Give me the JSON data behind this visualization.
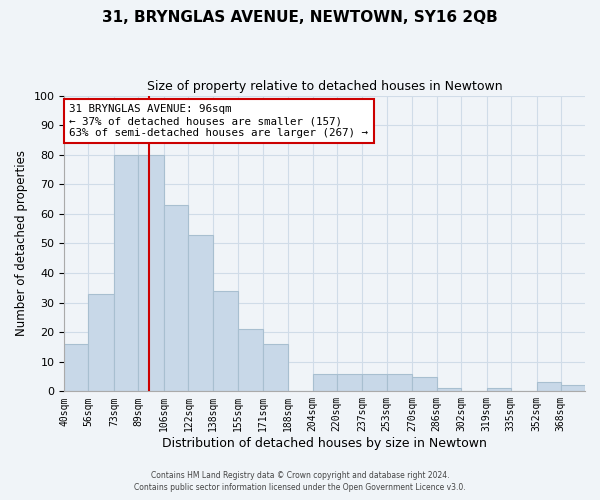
{
  "title": "31, BRYNGLAS AVENUE, NEWTOWN, SY16 2QB",
  "subtitle": "Size of property relative to detached houses in Newtown",
  "xlabel": "Distribution of detached houses by size in Newtown",
  "ylabel": "Number of detached properties",
  "bin_labels": [
    "40sqm",
    "56sqm",
    "73sqm",
    "89sqm",
    "106sqm",
    "122sqm",
    "138sqm",
    "155sqm",
    "171sqm",
    "188sqm",
    "204sqm",
    "220sqm",
    "237sqm",
    "253sqm",
    "270sqm",
    "286sqm",
    "302sqm",
    "319sqm",
    "335sqm",
    "352sqm",
    "368sqm"
  ],
  "bin_edges": [
    40,
    56,
    73,
    89,
    106,
    122,
    138,
    155,
    171,
    188,
    204,
    220,
    237,
    253,
    270,
    286,
    302,
    319,
    335,
    352,
    368,
    384
  ],
  "bar_heights": [
    16,
    33,
    80,
    80,
    63,
    53,
    34,
    21,
    16,
    0,
    6,
    6,
    6,
    6,
    5,
    1,
    0,
    1,
    0,
    3,
    2
  ],
  "bar_color": "#c8d8e8",
  "bar_edgecolor": "#a8bfd0",
  "ylim": [
    0,
    100
  ],
  "xlim": [
    40,
    384
  ],
  "property_size": 96,
  "vline_color": "#cc0000",
  "annotation_line1": "31 BRYNGLAS AVENUE: 96sqm",
  "annotation_line2": "← 37% of detached houses are smaller (157)",
  "annotation_line3": "63% of semi-detached houses are larger (267) →",
  "footer_line1": "Contains HM Land Registry data © Crown copyright and database right 2024.",
  "footer_line2": "Contains public sector information licensed under the Open Government Licence v3.0.",
  "background_color": "#f0f4f8",
  "grid_color": "#d0dce8",
  "title_fontsize": 11,
  "subtitle_fontsize": 9
}
